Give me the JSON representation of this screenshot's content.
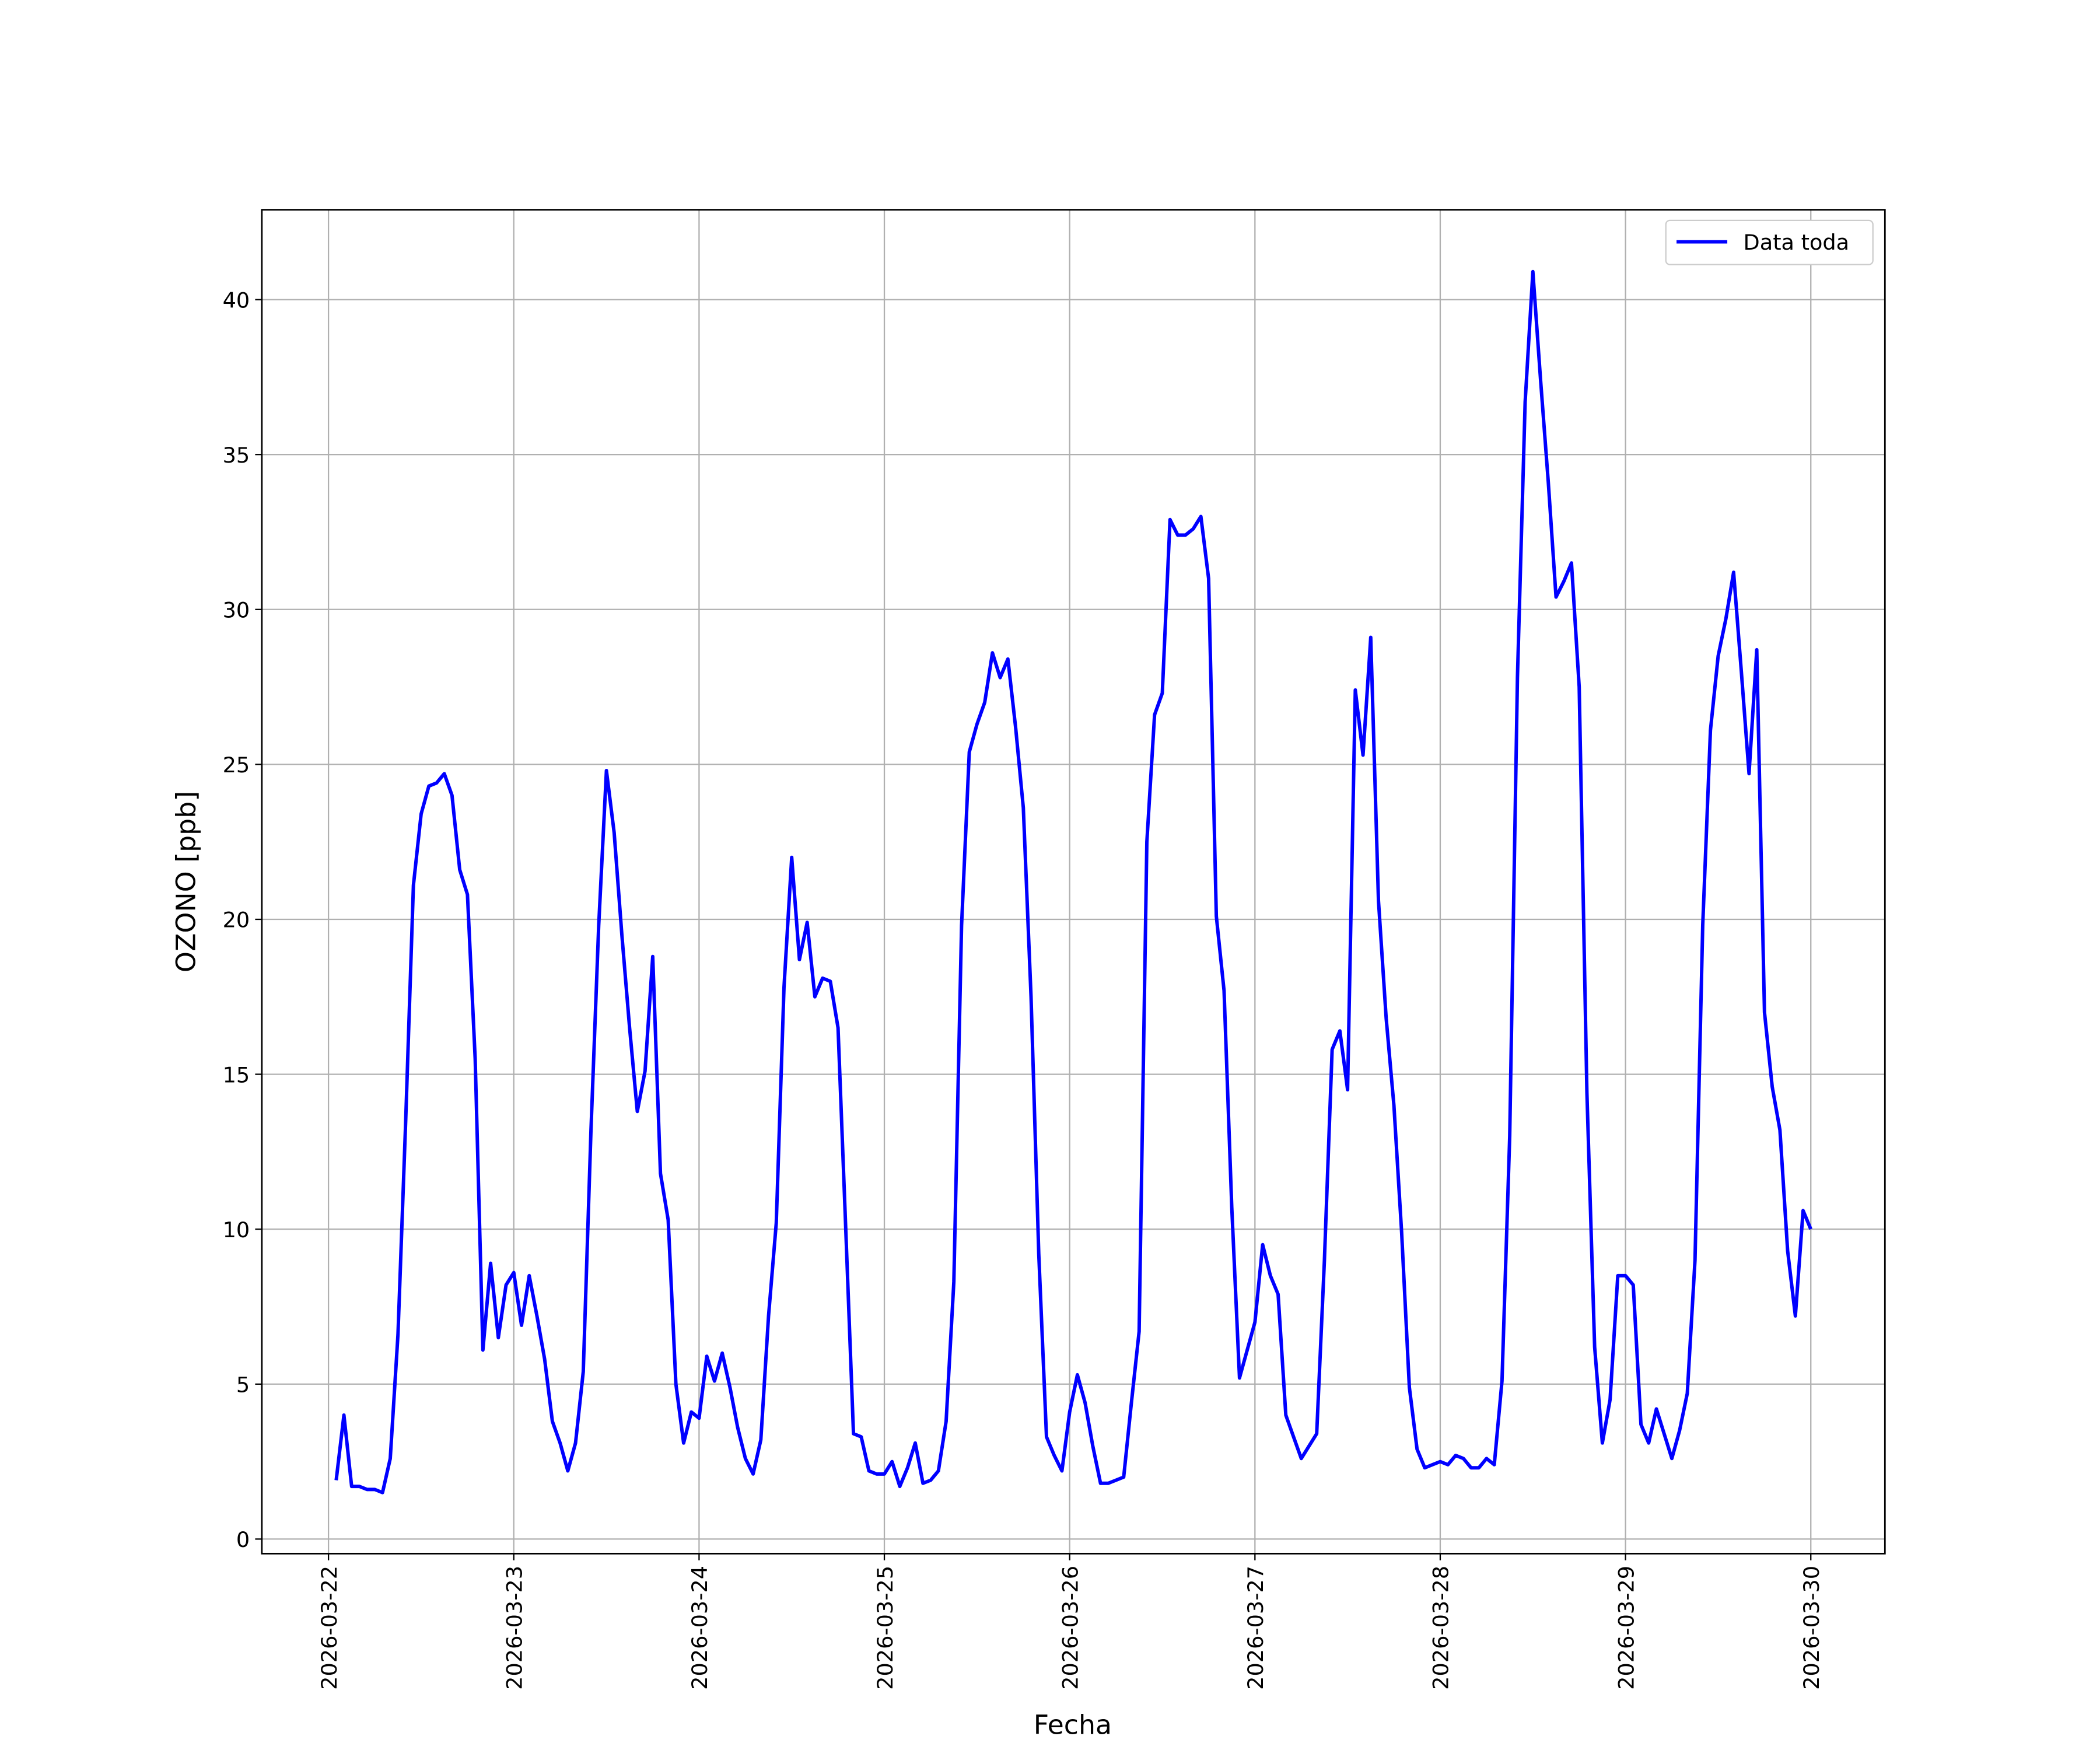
{
  "chart_data": {
    "type": "line",
    "x_label": "Fecha",
    "y_label": "OZONO [ppb]",
    "xlim": [
      "2026-03-21 15:22",
      "2026-03-30 09:36"
    ],
    "xticks": [
      "2026-03-22",
      "2026-03-23",
      "2026-03-24",
      "2026-03-25",
      "2026-03-26",
      "2026-03-27",
      "2026-03-28",
      "2026-03-29",
      "2026-03-30"
    ],
    "ylim": [
      -0.47,
      42.9
    ],
    "yticks": [
      0,
      5,
      10,
      15,
      20,
      25,
      30,
      35,
      40
    ],
    "grid": true,
    "legend": "upper right",
    "x": [
      "2026-03-22 01:00",
      "2026-03-22 02:00",
      "2026-03-22 03:00",
      "2026-03-22 04:00",
      "2026-03-22 05:00",
      "2026-03-22 06:00",
      "2026-03-22 07:00",
      "2026-03-22 08:00",
      "2026-03-22 09:00",
      "2026-03-22 10:00",
      "2026-03-22 11:00",
      "2026-03-22 12:00",
      "2026-03-22 13:00",
      "2026-03-22 14:00",
      "2026-03-22 15:00",
      "2026-03-22 16:00",
      "2026-03-22 17:00",
      "2026-03-22 18:00",
      "2026-03-22 19:00",
      "2026-03-22 20:00",
      "2026-03-22 21:00",
      "2026-03-22 22:00",
      "2026-03-22 23:00",
      "2026-03-23 00:00",
      "2026-03-23 01:00",
      "2026-03-23 02:00",
      "2026-03-23 03:00",
      "2026-03-23 04:00",
      "2026-03-23 05:00",
      "2026-03-23 06:00",
      "2026-03-23 07:00",
      "2026-03-23 08:00",
      "2026-03-23 09:00",
      "2026-03-23 10:00",
      "2026-03-23 11:00",
      "2026-03-23 12:00",
      "2026-03-23 13:00",
      "2026-03-23 14:00",
      "2026-03-23 15:00",
      "2026-03-23 16:00",
      "2026-03-23 17:00",
      "2026-03-23 18:00",
      "2026-03-23 19:00",
      "2026-03-23 20:00",
      "2026-03-23 21:00",
      "2026-03-23 22:00",
      "2026-03-23 23:00",
      "2026-03-24 00:00",
      "2026-03-24 01:00",
      "2026-03-24 02:00",
      "2026-03-24 03:00",
      "2026-03-24 04:00",
      "2026-03-24 05:00",
      "2026-03-24 06:00",
      "2026-03-24 07:00",
      "2026-03-24 08:00",
      "2026-03-24 09:00",
      "2026-03-24 10:00",
      "2026-03-24 11:00",
      "2026-03-24 12:00",
      "2026-03-24 13:00",
      "2026-03-24 14:00",
      "2026-03-24 15:00",
      "2026-03-24 16:00",
      "2026-03-24 17:00",
      "2026-03-24 18:00",
      "2026-03-24 19:00",
      "2026-03-24 20:00",
      "2026-03-24 21:00",
      "2026-03-24 22:00",
      "2026-03-24 23:00",
      "2026-03-25 00:00",
      "2026-03-25 01:00",
      "2026-03-25 02:00",
      "2026-03-25 03:00",
      "2026-03-25 04:00",
      "2026-03-25 05:00",
      "2026-03-25 06:00",
      "2026-03-25 07:00",
      "2026-03-25 08:00",
      "2026-03-25 09:00",
      "2026-03-25 10:00",
      "2026-03-25 11:00",
      "2026-03-25 12:00",
      "2026-03-25 13:00",
      "2026-03-25 14:00",
      "2026-03-25 15:00",
      "2026-03-25 16:00",
      "2026-03-25 17:00",
      "2026-03-25 18:00",
      "2026-03-25 19:00",
      "2026-03-25 20:00",
      "2026-03-25 21:00",
      "2026-03-25 22:00",
      "2026-03-25 23:00",
      "2026-03-26 00:00",
      "2026-03-26 01:00",
      "2026-03-26 02:00",
      "2026-03-26 03:00",
      "2026-03-26 04:00",
      "2026-03-26 05:00",
      "2026-03-26 06:00",
      "2026-03-26 07:00",
      "2026-03-26 08:00",
      "2026-03-26 09:00",
      "2026-03-26 10:00",
      "2026-03-26 11:00",
      "2026-03-26 12:00",
      "2026-03-26 13:00",
      "2026-03-26 14:00",
      "2026-03-26 15:00",
      "2026-03-26 16:00",
      "2026-03-26 17:00",
      "2026-03-26 18:00",
      "2026-03-26 19:00",
      "2026-03-26 20:00",
      "2026-03-26 21:00",
      "2026-03-26 22:00",
      "2026-03-26 23:00",
      "2026-03-27 00:00",
      "2026-03-27 01:00",
      "2026-03-27 02:00",
      "2026-03-27 03:00",
      "2026-03-27 04:00",
      "2026-03-27 05:00",
      "2026-03-27 06:00",
      "2026-03-27 07:00",
      "2026-03-27 08:00",
      "2026-03-27 09:00",
      "2026-03-27 10:00",
      "2026-03-27 11:00",
      "2026-03-27 12:00",
      "2026-03-27 13:00",
      "2026-03-27 14:00",
      "2026-03-27 15:00",
      "2026-03-27 16:00",
      "2026-03-27 17:00",
      "2026-03-27 18:00",
      "2026-03-27 19:00",
      "2026-03-27 20:00",
      "2026-03-27 21:00",
      "2026-03-27 22:00",
      "2026-03-27 23:00",
      "2026-03-28 00:00",
      "2026-03-28 01:00",
      "2026-03-28 02:00",
      "2026-03-28 03:00",
      "2026-03-28 04:00",
      "2026-03-28 05:00",
      "2026-03-28 06:00",
      "2026-03-28 07:00",
      "2026-03-28 08:00",
      "2026-03-28 09:00",
      "2026-03-28 10:00",
      "2026-03-28 11:00",
      "2026-03-28 12:00",
      "2026-03-28 13:00",
      "2026-03-28 14:00",
      "2026-03-28 15:00",
      "2026-03-28 16:00",
      "2026-03-28 17:00",
      "2026-03-28 18:00",
      "2026-03-28 19:00",
      "2026-03-28 20:00",
      "2026-03-28 21:00",
      "2026-03-28 22:00",
      "2026-03-28 23:00",
      "2026-03-29 00:00",
      "2026-03-29 01:00",
      "2026-03-29 02:00",
      "2026-03-29 03:00",
      "2026-03-29 04:00",
      "2026-03-29 05:00",
      "2026-03-29 06:00",
      "2026-03-29 07:00",
      "2026-03-29 08:00",
      "2026-03-29 09:00",
      "2026-03-29 10:00",
      "2026-03-29 11:00",
      "2026-03-29 12:00",
      "2026-03-29 13:00",
      "2026-03-29 14:00",
      "2026-03-29 15:00",
      "2026-03-29 16:00",
      "2026-03-29 17:00",
      "2026-03-29 18:00",
      "2026-03-29 19:00",
      "2026-03-29 20:00",
      "2026-03-29 21:00",
      "2026-03-29 22:00",
      "2026-03-29 23:00",
      "2026-03-30 00:00"
    ],
    "series": [
      {
        "name": "Data toda",
        "color": "#0000ff",
        "values": [
          1.9,
          4.0,
          1.7,
          1.7,
          1.6,
          1.6,
          1.5,
          2.6,
          6.6,
          13.5,
          21.1,
          23.4,
          24.3,
          24.4,
          24.7,
          24.0,
          21.6,
          20.8,
          15.5,
          6.1,
          8.9,
          6.5,
          8.2,
          8.6,
          6.9,
          8.5,
          7.2,
          5.8,
          3.8,
          3.1,
          2.2,
          3.1,
          5.4,
          13.2,
          19.8,
          24.8,
          22.8,
          19.5,
          16.5,
          13.8,
          15.1,
          18.8,
          11.8,
          10.3,
          5.0,
          3.1,
          4.1,
          3.9,
          5.9,
          5.1,
          6.0,
          4.9,
          3.6,
          2.6,
          2.1,
          3.2,
          7.2,
          10.2,
          17.8,
          22.0,
          18.7,
          19.9,
          17.5,
          18.1,
          18.0,
          16.5,
          10.0,
          3.4,
          3.3,
          2.2,
          2.1,
          2.1,
          2.5,
          1.7,
          2.3,
          3.1,
          1.8,
          1.9,
          2.2,
          3.8,
          8.3,
          19.8,
          25.4,
          26.3,
          27.0,
          28.6,
          27.8,
          28.4,
          26.2,
          23.6,
          17.5,
          9.2,
          3.3,
          2.7,
          2.2,
          4.1,
          5.3,
          4.4,
          3.0,
          1.8,
          1.8,
          1.9,
          2.0,
          4.4,
          6.7,
          22.5,
          26.6,
          27.3,
          32.9,
          32.4,
          32.4,
          32.6,
          33.0,
          31.0,
          20.1,
          17.7,
          10.7,
          5.2,
          6.1,
          7.0,
          9.5,
          8.5,
          7.9,
          4.0,
          3.3,
          2.6,
          3.0,
          3.4,
          9.0,
          15.8,
          16.4,
          14.5,
          27.4,
          25.3,
          29.1,
          20.6,
          16.8,
          14.0,
          9.9,
          4.9,
          2.9,
          2.3,
          2.4,
          2.5,
          2.4,
          2.7,
          2.6,
          2.3,
          2.3,
          2.6,
          2.4,
          5.1,
          13.0,
          27.8,
          36.7,
          40.9,
          37.4,
          34.1,
          30.4,
          30.9,
          31.5,
          27.5,
          14.4,
          6.2,
          3.1,
          4.5,
          8.5,
          8.5,
          8.2,
          3.7,
          3.1,
          4.2,
          3.4,
          2.6,
          3.5,
          4.7,
          9.0,
          19.8,
          26.1,
          28.5,
          29.7,
          31.2,
          28.0,
          24.7,
          28.7,
          17.0,
          14.6,
          13.2,
          9.3,
          7.2,
          10.6,
          10.0
        ]
      }
    ]
  }
}
